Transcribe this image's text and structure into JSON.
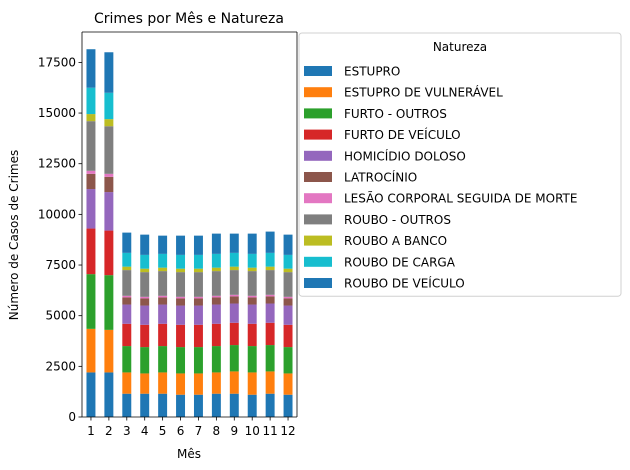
{
  "chart_data": {
    "type": "bar",
    "stacked": true,
    "title": "Crimes por Mês e Natureza",
    "xlabel": "Mês",
    "ylabel": "Número de Casos de Crimes",
    "ylim": [
      0,
      19000
    ],
    "yticks": [
      0,
      2500,
      5000,
      7500,
      10000,
      12500,
      15000,
      17500
    ],
    "ytick_labels": [
      "0",
      "2500",
      "5000",
      "7500",
      "10000",
      "12500",
      "15000",
      "17500"
    ],
    "categories": [
      "1",
      "2",
      "3",
      "4",
      "5",
      "6",
      "7",
      "8",
      "9",
      "10",
      "11",
      "12"
    ],
    "legend": {
      "title": "Natureza",
      "position": "outside-right-top"
    },
    "grid": false,
    "series": [
      {
        "name": "ESTUPRO",
        "color": "#1f77b4",
        "values": [
          2200,
          2200,
          1150,
          1150,
          1150,
          1100,
          1100,
          1150,
          1150,
          1100,
          1150,
          1100
        ]
      },
      {
        "name": "ESTUPRO DE VULNERÁVEL",
        "color": "#ff7f0e",
        "values": [
          2150,
          2100,
          1050,
          1000,
          1050,
          1050,
          1050,
          1050,
          1100,
          1100,
          1100,
          1050
        ]
      },
      {
        "name": "FURTO - OUTROS",
        "color": "#2ca02c",
        "values": [
          2700,
          2700,
          1300,
          1300,
          1300,
          1300,
          1300,
          1300,
          1300,
          1300,
          1300,
          1300
        ]
      },
      {
        "name": "FURTO DE VEÍCULO",
        "color": "#d62728",
        "values": [
          2250,
          2200,
          1100,
          1100,
          1100,
          1100,
          1100,
          1100,
          1100,
          1100,
          1100,
          1100
        ]
      },
      {
        "name": "HOMICÍDIO DOLOSO",
        "color": "#9467bd",
        "values": [
          1950,
          1900,
          950,
          950,
          950,
          950,
          950,
          950,
          950,
          950,
          950,
          950
        ]
      },
      {
        "name": "LATROCÍNIO",
        "color": "#8c564b",
        "values": [
          750,
          750,
          350,
          350,
          350,
          350,
          350,
          350,
          350,
          350,
          350,
          350
        ]
      },
      {
        "name": "LESÃO CORPORAL SEGUIDA DE MORTE",
        "color": "#e377c2",
        "values": [
          150,
          150,
          80,
          80,
          80,
          80,
          80,
          80,
          80,
          80,
          80,
          80
        ]
      },
      {
        "name": "ROUBO - OUTROS",
        "color": "#7f7f7f",
        "values": [
          2450,
          2350,
          1270,
          1220,
          1220,
          1220,
          1220,
          1220,
          1220,
          1220,
          1220,
          1220
        ]
      },
      {
        "name": "ROUBO A BANCO",
        "color": "#bcbd22",
        "values": [
          350,
          350,
          170,
          170,
          170,
          170,
          170,
          170,
          170,
          170,
          170,
          170
        ]
      },
      {
        "name": "ROUBO DE CARGA",
        "color": "#17becf",
        "values": [
          1300,
          1300,
          680,
          680,
          680,
          680,
          680,
          680,
          680,
          680,
          680,
          680
        ]
      },
      {
        "name": "ROUBO DE VEÍCULO",
        "color": "#1f77b4",
        "values": [
          1900,
          2000,
          1000,
          1000,
          900,
          950,
          950,
          1000,
          950,
          1000,
          1050,
          1000
        ]
      }
    ]
  }
}
